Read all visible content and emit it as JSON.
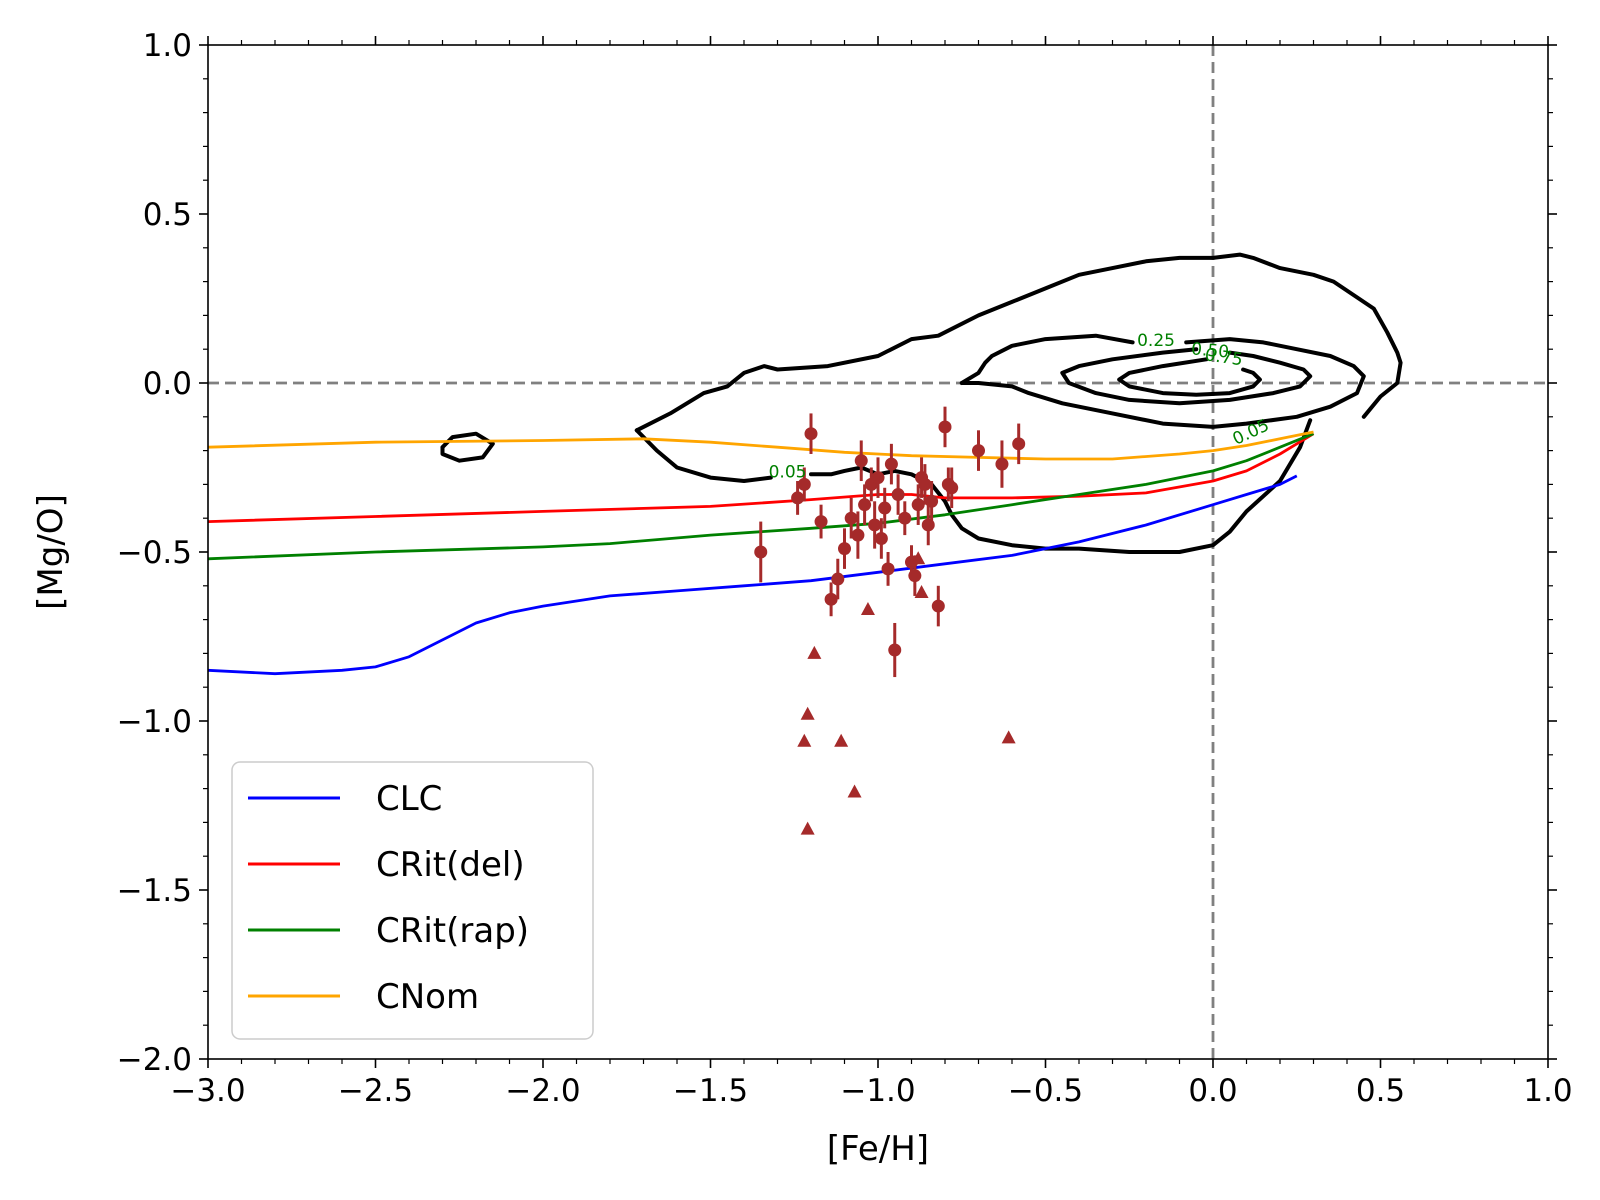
{
  "chart_data": {
    "type": "line",
    "title": "",
    "xlabel": "[Fe/H]",
    "ylabel": "[Mg/O]",
    "xlim": [
      -3.0,
      1.0
    ],
    "ylim": [
      -2.0,
      1.0
    ],
    "x_ticks": [
      -3.0,
      -2.5,
      -2.0,
      -1.5,
      -1.0,
      -0.5,
      0.0,
      0.5,
      1.0
    ],
    "x_tick_labels": [
      "−3.0",
      "−2.5",
      "−2.0",
      "−1.5",
      "−1.0",
      "−0.5",
      "0.0",
      "0.5",
      "1.0"
    ],
    "y_ticks": [
      1.0,
      0.5,
      0.0,
      -0.5,
      -1.0,
      -1.5,
      -2.0
    ],
    "y_tick_labels": [
      "1.0",
      "0.5",
      "0.0",
      "−0.5",
      "−1.0",
      "−1.5",
      "−2.0"
    ],
    "reference_lines": [
      {
        "orientation": "horizontal",
        "value": 0.0,
        "style": "dashed",
        "color": "#808080"
      },
      {
        "orientation": "vertical",
        "value": 0.0,
        "style": "dashed",
        "color": "#808080"
      }
    ],
    "legend_position": "lower-left",
    "series": [
      {
        "name": "CLC",
        "color": "#0000ff",
        "x": [
          -3.0,
          -2.8,
          -2.6,
          -2.5,
          -2.4,
          -2.3,
          -2.2,
          -2.1,
          -2.0,
          -1.8,
          -1.6,
          -1.4,
          -1.2,
          -1.0,
          -0.8,
          -0.6,
          -0.5,
          -0.4,
          -0.2,
          0.0,
          0.1,
          0.2,
          0.25
        ],
        "y": [
          -0.85,
          -0.86,
          -0.85,
          -0.84,
          -0.81,
          -0.76,
          -0.71,
          -0.68,
          -0.66,
          -0.63,
          -0.615,
          -0.6,
          -0.585,
          -0.56,
          -0.535,
          -0.51,
          -0.49,
          -0.47,
          -0.42,
          -0.36,
          -0.33,
          -0.3,
          -0.275
        ]
      },
      {
        "name": "CRit(del)",
        "color": "#ff0000",
        "x": [
          -3.0,
          -2.5,
          -2.0,
          -1.5,
          -1.2,
          -1.0,
          -0.9,
          -0.8,
          -0.6,
          -0.4,
          -0.2,
          0.0,
          0.1,
          0.2,
          0.3
        ],
        "y": [
          -0.41,
          -0.395,
          -0.38,
          -0.365,
          -0.345,
          -0.33,
          -0.33,
          -0.34,
          -0.34,
          -0.335,
          -0.325,
          -0.29,
          -0.26,
          -0.21,
          -0.15
        ]
      },
      {
        "name": "CRit(rap)",
        "color": "#008000",
        "x": [
          -3.0,
          -2.5,
          -2.0,
          -1.8,
          -1.5,
          -1.2,
          -1.0,
          -0.8,
          -0.6,
          -0.4,
          -0.2,
          0.0,
          0.1,
          0.2,
          0.3
        ],
        "y": [
          -0.52,
          -0.5,
          -0.485,
          -0.475,
          -0.45,
          -0.43,
          -0.415,
          -0.39,
          -0.36,
          -0.33,
          -0.3,
          -0.26,
          -0.23,
          -0.19,
          -0.15
        ]
      },
      {
        "name": "CNom",
        "color": "#ffa500",
        "x": [
          -3.0,
          -2.5,
          -2.0,
          -1.7,
          -1.5,
          -1.3,
          -1.1,
          -0.9,
          -0.7,
          -0.5,
          -0.3,
          -0.1,
          0.0,
          0.1,
          0.2,
          0.3
        ],
        "y": [
          -0.19,
          -0.175,
          -0.17,
          -0.165,
          -0.175,
          -0.19,
          -0.205,
          -0.215,
          -0.22,
          -0.225,
          -0.225,
          -0.21,
          -0.2,
          -0.185,
          -0.165,
          -0.145
        ]
      }
    ],
    "observations_with_errorbars": {
      "marker": "circle",
      "color": "#a52a2a",
      "points": [
        {
          "x": -1.35,
          "y": -0.5,
          "err": 0.09
        },
        {
          "x": -1.24,
          "y": -0.34,
          "err": 0.05
        },
        {
          "x": -1.22,
          "y": -0.3,
          "err": 0.05
        },
        {
          "x": -1.2,
          "y": -0.15,
          "err": 0.06
        },
        {
          "x": -1.17,
          "y": -0.41,
          "err": 0.05
        },
        {
          "x": -1.14,
          "y": -0.64,
          "err": 0.05
        },
        {
          "x": -1.12,
          "y": -0.58,
          "err": 0.06
        },
        {
          "x": -1.1,
          "y": -0.49,
          "err": 0.06
        },
        {
          "x": -1.08,
          "y": -0.4,
          "err": 0.06
        },
        {
          "x": -1.06,
          "y": -0.45,
          "err": 0.07
        },
        {
          "x": -1.05,
          "y": -0.23,
          "err": 0.06
        },
        {
          "x": -1.04,
          "y": -0.36,
          "err": 0.06
        },
        {
          "x": -1.02,
          "y": -0.3,
          "err": 0.05
        },
        {
          "x": -1.01,
          "y": -0.42,
          "err": 0.07
        },
        {
          "x": -1.0,
          "y": -0.28,
          "err": 0.06
        },
        {
          "x": -0.99,
          "y": -0.46,
          "err": 0.06
        },
        {
          "x": -0.98,
          "y": -0.37,
          "err": 0.06
        },
        {
          "x": -0.97,
          "y": -0.55,
          "err": 0.05
        },
        {
          "x": -0.96,
          "y": -0.24,
          "err": 0.06
        },
        {
          "x": -0.95,
          "y": -0.79,
          "err": 0.08
        },
        {
          "x": -0.94,
          "y": -0.33,
          "err": 0.06
        },
        {
          "x": -0.92,
          "y": -0.4,
          "err": 0.05
        },
        {
          "x": -0.9,
          "y": -0.53,
          "err": 0.05
        },
        {
          "x": -0.89,
          "y": -0.57,
          "err": 0.06
        },
        {
          "x": -0.88,
          "y": -0.36,
          "err": 0.06
        },
        {
          "x": -0.87,
          "y": -0.28,
          "err": 0.06
        },
        {
          "x": -0.86,
          "y": -0.3,
          "err": 0.06
        },
        {
          "x": -0.85,
          "y": -0.42,
          "err": 0.06
        },
        {
          "x": -0.84,
          "y": -0.35,
          "err": 0.06
        },
        {
          "x": -0.82,
          "y": -0.66,
          "err": 0.06
        },
        {
          "x": -0.8,
          "y": -0.13,
          "err": 0.06
        },
        {
          "x": -0.79,
          "y": -0.3,
          "err": 0.05
        },
        {
          "x": -0.78,
          "y": -0.31,
          "err": 0.06
        },
        {
          "x": -0.7,
          "y": -0.2,
          "err": 0.06
        },
        {
          "x": -0.63,
          "y": -0.24,
          "err": 0.07
        },
        {
          "x": -0.58,
          "y": -0.18,
          "err": 0.06
        }
      ]
    },
    "upper_limits": {
      "marker": "triangle",
      "color": "#a52a2a",
      "points": [
        {
          "x": -1.22,
          "y": -1.06
        },
        {
          "x": -1.21,
          "y": -0.98
        },
        {
          "x": -1.21,
          "y": -1.32
        },
        {
          "x": -1.19,
          "y": -0.8
        },
        {
          "x": -1.11,
          "y": -1.06
        },
        {
          "x": -1.07,
          "y": -1.21
        },
        {
          "x": -1.03,
          "y": -0.67
        },
        {
          "x": -0.87,
          "y": -0.62
        },
        {
          "x": -0.88,
          "y": -0.52
        },
        {
          "x": -0.61,
          "y": -1.05
        }
      ]
    },
    "contours": {
      "color": "#000000",
      "levels": [
        {
          "level": "0.05",
          "label_at": [
            0.12,
            -0.16
          ],
          "label_angle": -25,
          "paths": [
            [
              [
                -1.72,
                -0.14
              ],
              [
                -1.62,
                -0.09
              ],
              [
                -1.52,
                -0.03
              ],
              [
                -1.45,
                -0.01
              ],
              [
                -1.4,
                0.03
              ],
              [
                -1.34,
                0.05
              ],
              [
                -1.3,
                0.04
              ],
              [
                -1.15,
                0.05
              ],
              [
                -1.0,
                0.08
              ],
              [
                -0.9,
                0.13
              ],
              [
                -0.82,
                0.14
              ],
              [
                -0.7,
                0.2
              ],
              [
                -0.6,
                0.24
              ],
              [
                -0.5,
                0.28
              ],
              [
                -0.4,
                0.32
              ],
              [
                -0.3,
                0.34
              ],
              [
                -0.2,
                0.36
              ],
              [
                -0.1,
                0.37
              ],
              [
                0.0,
                0.37
              ],
              [
                0.08,
                0.38
              ],
              [
                0.12,
                0.37
              ],
              [
                0.2,
                0.34
              ],
              [
                0.3,
                0.32
              ],
              [
                0.36,
                0.3
              ],
              [
                0.42,
                0.26
              ],
              [
                0.48,
                0.22
              ],
              [
                0.52,
                0.15
              ],
              [
                0.55,
                0.09
              ],
              [
                0.56,
                0.06
              ],
              [
                0.55,
                0.0
              ],
              [
                0.5,
                -0.04
              ],
              [
                0.45,
                -0.1
              ]
            ],
            [
              [
                0.29,
                -0.11
              ],
              [
                0.26,
                -0.19
              ],
              [
                0.2,
                -0.29
              ],
              [
                0.1,
                -0.38
              ],
              [
                0.05,
                -0.44
              ],
              [
                0.0,
                -0.48
              ],
              [
                -0.1,
                -0.5
              ],
              [
                -0.25,
                -0.5
              ],
              [
                -0.4,
                -0.49
              ],
              [
                -0.5,
                -0.49
              ],
              [
                -0.6,
                -0.48
              ],
              [
                -0.7,
                -0.46
              ],
              [
                -0.75,
                -0.43
              ],
              [
                -0.78,
                -0.39
              ],
              [
                -0.8,
                -0.35
              ],
              [
                -0.84,
                -0.3
              ],
              [
                -0.9,
                -0.27
              ],
              [
                -0.95,
                -0.26
              ],
              [
                -1.0,
                -0.27
              ],
              [
                -1.05,
                -0.25
              ],
              [
                -1.1,
                -0.26
              ],
              [
                -1.14,
                -0.27
              ],
              [
                -1.2,
                -0.27
              ]
            ],
            [
              [
                -1.32,
                -0.28
              ],
              [
                -1.4,
                -0.29
              ],
              [
                -1.5,
                -0.28
              ],
              [
                -1.6,
                -0.25
              ],
              [
                -1.66,
                -0.2
              ],
              [
                -1.72,
                -0.14
              ]
            ],
            [
              [
                -2.3,
                -0.19
              ],
              [
                -2.27,
                -0.16
              ],
              [
                -2.2,
                -0.15
              ],
              [
                -2.15,
                -0.18
              ],
              [
                -2.18,
                -0.22
              ],
              [
                -2.25,
                -0.23
              ],
              [
                -2.3,
                -0.21
              ],
              [
                -2.3,
                -0.19
              ]
            ]
          ]
        },
        {
          "level": "0.25",
          "label_at": [
            -0.17,
            0.11
          ],
          "label_angle": 0,
          "paths": [
            [
              [
                -0.75,
                0.0
              ],
              [
                -0.7,
                0.03
              ],
              [
                -0.68,
                0.06
              ],
              [
                -0.66,
                0.08
              ],
              [
                -0.6,
                0.11
              ],
              [
                -0.5,
                0.13
              ],
              [
                -0.35,
                0.14
              ],
              [
                -0.24,
                0.12
              ]
            ],
            [
              [
                -0.08,
                0.12
              ],
              [
                0.05,
                0.13
              ],
              [
                0.15,
                0.12
              ],
              [
                0.25,
                0.1
              ],
              [
                0.35,
                0.08
              ],
              [
                0.42,
                0.05
              ],
              [
                0.45,
                0.02
              ],
              [
                0.43,
                -0.03
              ],
              [
                0.35,
                -0.07
              ],
              [
                0.25,
                -0.1
              ],
              [
                0.1,
                -0.12
              ],
              [
                0.0,
                -0.13
              ],
              [
                -0.15,
                -0.12
              ],
              [
                -0.3,
                -0.09
              ],
              [
                -0.45,
                -0.06
              ],
              [
                -0.55,
                -0.03
              ],
              [
                -0.6,
                -0.01
              ],
              [
                -0.7,
                0.0
              ],
              [
                -0.75,
                0.0
              ]
            ]
          ]
        },
        {
          "level": "0.50",
          "label_at": [
            -0.01,
            0.08
          ],
          "label_angle": 5,
          "paths": [
            [
              [
                -0.05,
                0.1
              ],
              [
                -0.15,
                0.09
              ],
              [
                -0.3,
                0.07
              ],
              [
                -0.4,
                0.05
              ],
              [
                -0.45,
                0.03
              ],
              [
                -0.43,
                0.0
              ],
              [
                -0.35,
                -0.03
              ],
              [
                -0.25,
                -0.05
              ],
              [
                -0.1,
                -0.06
              ],
              [
                0.05,
                -0.05
              ],
              [
                0.18,
                -0.03
              ],
              [
                0.26,
                -0.01
              ],
              [
                0.29,
                0.02
              ],
              [
                0.27,
                0.04
              ],
              [
                0.2,
                0.06
              ],
              [
                0.12,
                0.08
              ],
              [
                0.05,
                0.09
              ]
            ]
          ]
        },
        {
          "level": "0.75",
          "label_at": [
            0.03,
            0.06
          ],
          "label_angle": 8,
          "paths": [
            [
              [
                -0.02,
                0.07
              ],
              [
                -0.15,
                0.05
              ],
              [
                -0.25,
                0.03
              ],
              [
                -0.28,
                0.01
              ],
              [
                -0.25,
                -0.01
              ],
              [
                -0.15,
                -0.03
              ],
              [
                -0.05,
                -0.035
              ],
              [
                0.05,
                -0.03
              ],
              [
                0.12,
                -0.01
              ],
              [
                0.14,
                0.01
              ],
              [
                0.12,
                0.03
              ],
              [
                0.09,
                0.04
              ]
            ]
          ]
        },
        {
          "level": "0.05",
          "label_at": [
            -1.27,
            -0.28
          ],
          "label_angle": 0,
          "paths": []
        }
      ],
      "labels": [
        "0.05",
        "0.25",
        "0.50",
        "0.75",
        "0.05"
      ]
    }
  }
}
